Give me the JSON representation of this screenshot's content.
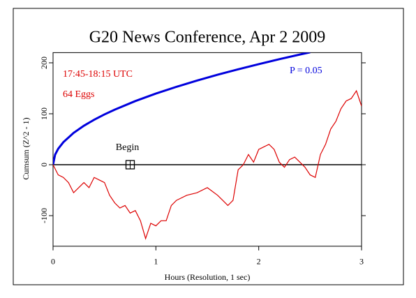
{
  "chart_data": {
    "type": "line",
    "title": "G20 News Conference, Apr 2 2009",
    "annotations": [
      "17:45-18:15 UTC",
      "64 Eggs",
      "P = 0.05"
    ],
    "xlabel": "Hours (Resolution, 1 sec)",
    "ylabel": "Cumsum (Z^2 - 1)",
    "xlim": [
      0,
      3
    ],
    "xticks": [
      0,
      1,
      2,
      3
    ],
    "ylim": [
      -160,
      220
    ],
    "yticks": [
      -100,
      0,
      100,
      200
    ],
    "begin_marker": {
      "x": 0.75,
      "y": 0,
      "label": "Begin"
    },
    "series": [
      {
        "name": "P = 0.05",
        "color": "#0000dd",
        "x": [
          0,
          0.02,
          0.05,
          0.1,
          0.2,
          0.3,
          0.4,
          0.5,
          0.6,
          0.8,
          1.0,
          1.2,
          1.4,
          1.6,
          1.8,
          2.0,
          2.2,
          2.4,
          2.5
        ],
        "values": [
          0,
          19.7,
          31.2,
          44.1,
          62.4,
          76.5,
          88.3,
          98.7,
          108.1,
          124.9,
          139.6,
          152.9,
          165.2,
          176.6,
          187.3,
          197.4,
          207.1,
          216.3,
          220.7
        ]
      },
      {
        "name": "Cumsum",
        "color": "#dd0000",
        "x": [
          0,
          0.05,
          0.1,
          0.15,
          0.2,
          0.25,
          0.3,
          0.35,
          0.4,
          0.45,
          0.5,
          0.55,
          0.6,
          0.65,
          0.7,
          0.75,
          0.8,
          0.85,
          0.9,
          0.95,
          1.0,
          1.05,
          1.1,
          1.15,
          1.2,
          1.3,
          1.4,
          1.5,
          1.6,
          1.65,
          1.7,
          1.75,
          1.8,
          1.85,
          1.9,
          1.95,
          2.0,
          2.05,
          2.1,
          2.15,
          2.2,
          2.25,
          2.3,
          2.35,
          2.4,
          2.45,
          2.5,
          2.55,
          2.6,
          2.65,
          2.7,
          2.75,
          2.8,
          2.85,
          2.9,
          2.95,
          3.0
        ],
        "values": [
          0,
          -20,
          -25,
          -35,
          -55,
          -45,
          -35,
          -45,
          -25,
          -30,
          -35,
          -60,
          -75,
          -85,
          -80,
          -95,
          -90,
          -110,
          -145,
          -115,
          -120,
          -110,
          -110,
          -80,
          -70,
          -60,
          -55,
          -45,
          -60,
          -70,
          -80,
          -70,
          -10,
          0,
          20,
          5,
          30,
          35,
          40,
          30,
          5,
          -5,
          10,
          15,
          5,
          -5,
          -20,
          -25,
          20,
          40,
          70,
          85,
          110,
          125,
          130,
          145,
          115
        ]
      }
    ]
  }
}
